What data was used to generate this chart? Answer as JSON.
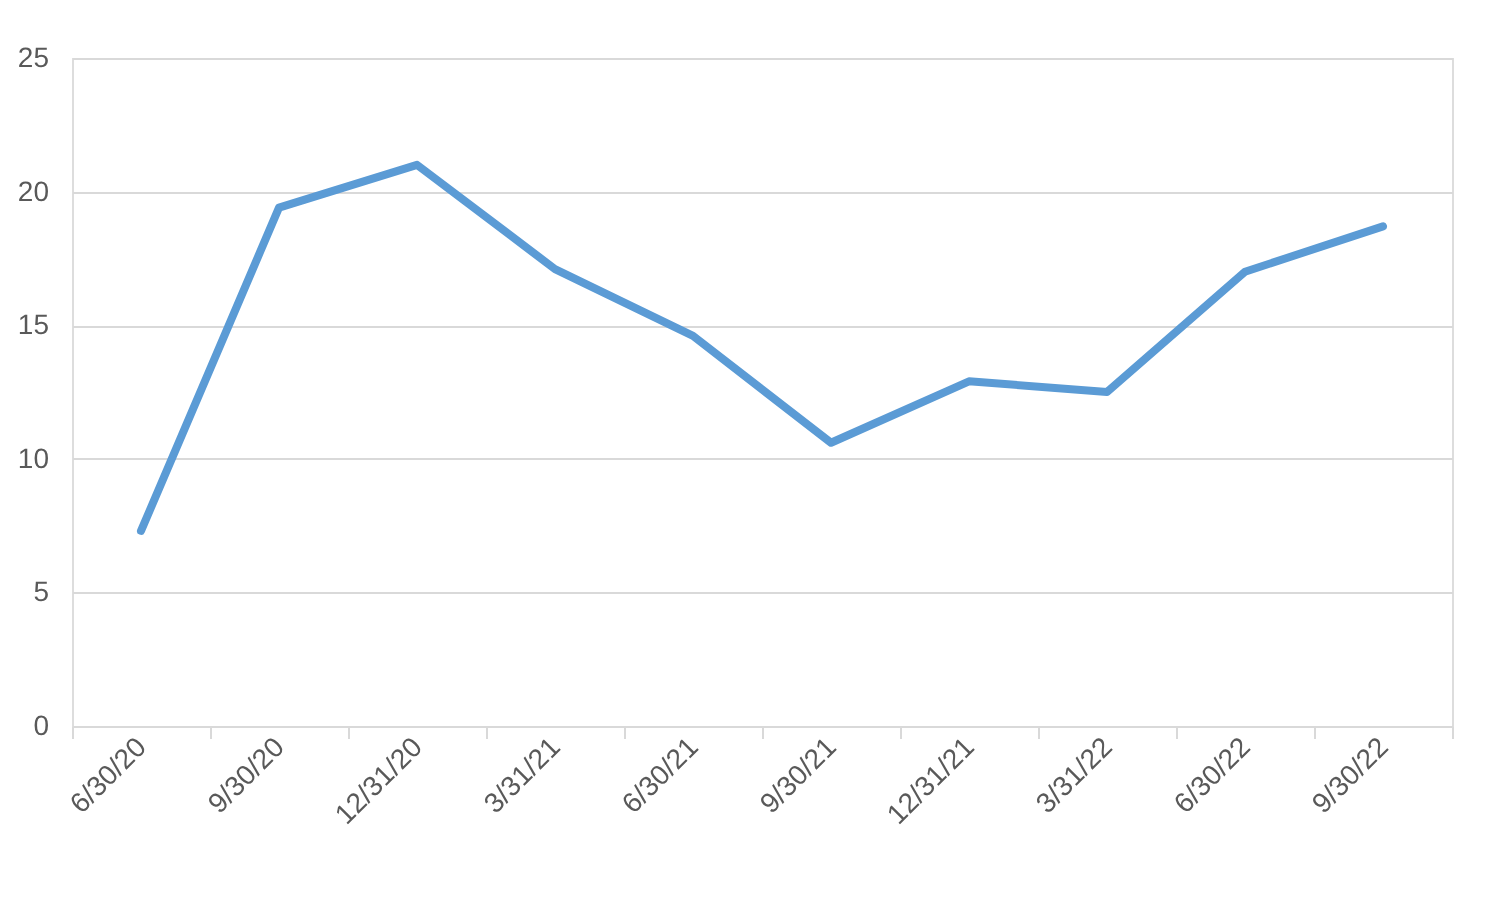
{
  "chart_data": {
    "type": "line",
    "categories": [
      "6/30/20",
      "9/30/20",
      "12/31/20",
      "3/31/21",
      "6/30/21",
      "9/30/21",
      "12/31/21",
      "3/31/22",
      "6/30/22",
      "9/30/22"
    ],
    "series": [
      {
        "color": "#5b9bd5",
        "values": [
          7.3,
          19.4,
          21.0,
          17.1,
          14.6,
          10.6,
          12.9,
          12.5,
          17.0,
          18.7
        ]
      }
    ],
    "ylim": [
      0,
      25
    ],
    "yticks": [
      0,
      5,
      10,
      15,
      20,
      25
    ],
    "grid": "y",
    "legend": false,
    "marker": "none",
    "line_style": "solid"
  }
}
